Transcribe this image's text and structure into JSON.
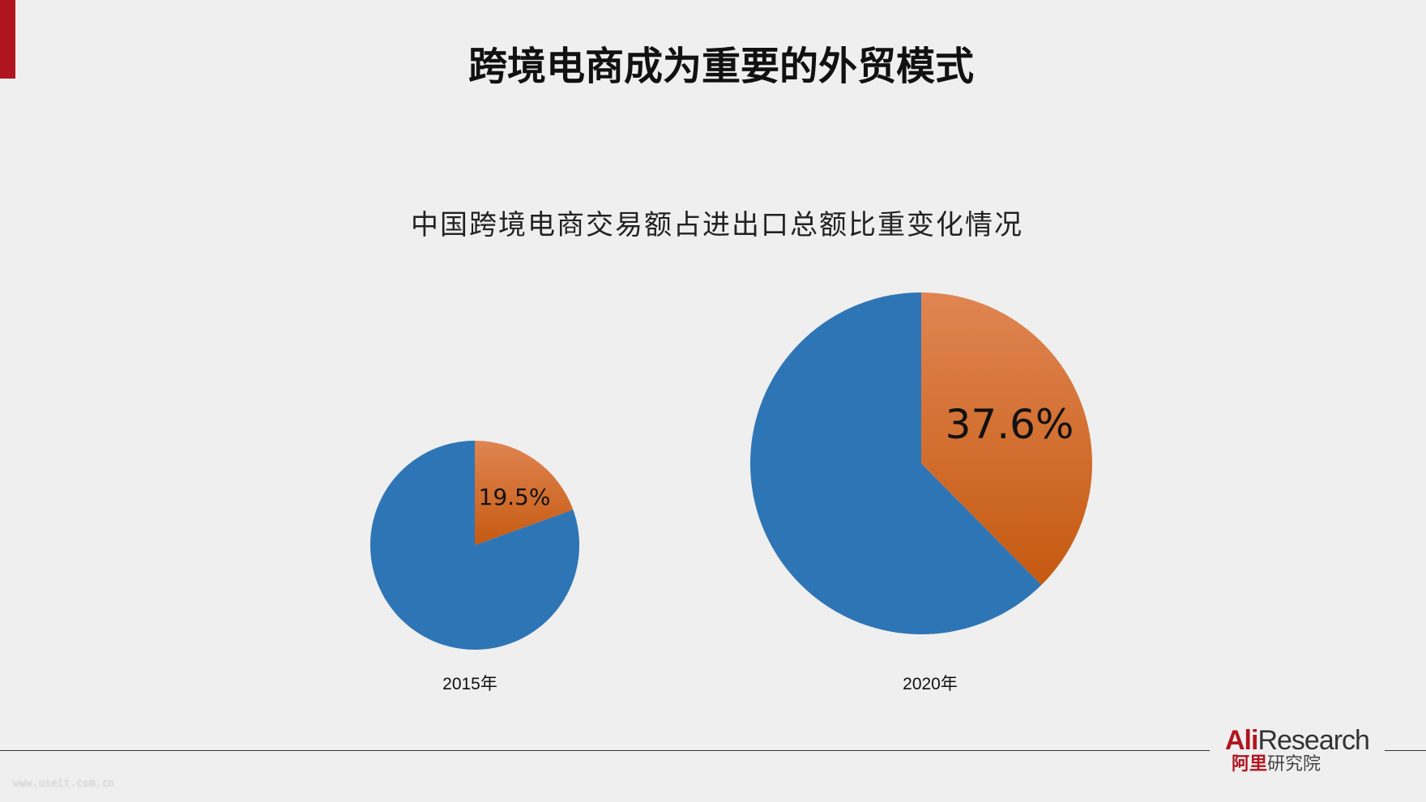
{
  "slide": {
    "title": "跨境电商成为重要的外贸模式",
    "logo": {
      "en_red": "Ali",
      "en_dark": "Research",
      "cn_red": "阿里",
      "cn_dark": "研究院"
    },
    "watermark": "www.useit.com.cn"
  },
  "chart_data": [
    {
      "type": "pie",
      "title": "中国跨境电商交易额占进出口总额比重变化情况",
      "category_label": "2015年",
      "slices": [
        {
          "value": 19.5,
          "label": "19.5%",
          "color": "#d46a22"
        },
        {
          "value": 80.5,
          "label": "",
          "color": "#2e75b6"
        }
      ]
    },
    {
      "type": "pie",
      "category_label": "2020年",
      "slices": [
        {
          "value": 37.6,
          "label": "37.6%",
          "color": "#d46a22"
        },
        {
          "value": 62.4,
          "label": "",
          "color": "#2e75b6"
        }
      ]
    }
  ]
}
